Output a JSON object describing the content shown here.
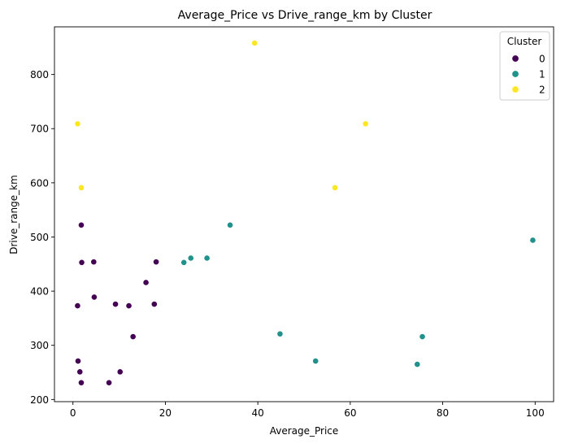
{
  "chart_data": {
    "type": "scatter",
    "title": "Average_Price vs Drive_range_km by Cluster",
    "xlabel": "Average_Price",
    "ylabel": "Drive_range_km",
    "xlim": [
      -4,
      104
    ],
    "ylim": [
      196,
      888
    ],
    "xticks": [
      0,
      20,
      40,
      60,
      80,
      100
    ],
    "yticks": [
      200,
      300,
      400,
      500,
      600,
      700,
      800
    ],
    "grid": false,
    "legend": {
      "title": "Cluster",
      "placement": "top-right",
      "entries": [
        "0",
        "1",
        "2"
      ]
    },
    "series": [
      {
        "name": "0",
        "color": "#440154",
        "points": [
          [
            1.8,
            522
          ],
          [
            1.9,
            453
          ],
          [
            4.5,
            454
          ],
          [
            18.0,
            454
          ],
          [
            15.8,
            416
          ],
          [
            4.6,
            389
          ],
          [
            1.0,
            373
          ],
          [
            9.2,
            376
          ],
          [
            12.1,
            373
          ],
          [
            17.6,
            376
          ],
          [
            13.0,
            316
          ],
          [
            1.1,
            271
          ],
          [
            1.5,
            251
          ],
          [
            10.2,
            251
          ],
          [
            1.8,
            231
          ],
          [
            7.8,
            231
          ]
        ]
      },
      {
        "name": "1",
        "color": "#21918c",
        "points": [
          [
            34.0,
            522
          ],
          [
            24.0,
            453
          ],
          [
            25.5,
            461
          ],
          [
            29.0,
            461
          ],
          [
            99.5,
            494
          ],
          [
            44.8,
            321
          ],
          [
            75.6,
            316
          ],
          [
            52.5,
            271
          ],
          [
            74.5,
            265
          ]
        ]
      },
      {
        "name": "2",
        "color": "#fde725",
        "points": [
          [
            39.3,
            858
          ],
          [
            1.0,
            709
          ],
          [
            63.3,
            709
          ],
          [
            1.8,
            591
          ],
          [
            56.7,
            591
          ]
        ]
      }
    ]
  }
}
